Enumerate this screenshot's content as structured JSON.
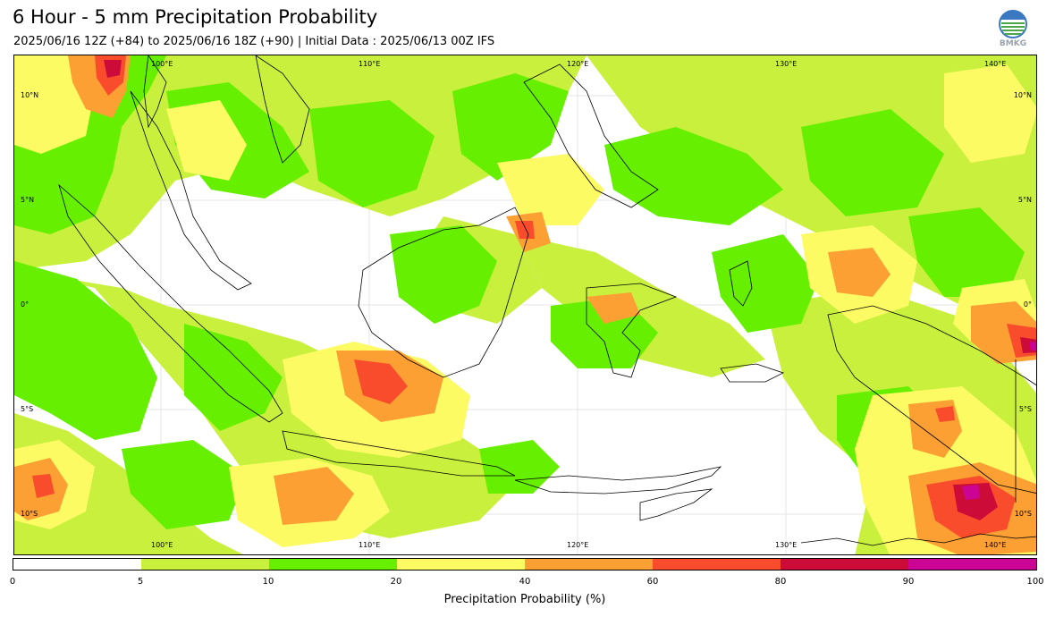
{
  "header": {
    "title": "6 Hour - 5 mm Precipitation Probability",
    "subtitle": "2025/06/16 12Z (+84) to 2025/06/16 18Z (+90) | Initial Data : 2025/06/13 00Z IFS"
  },
  "logo": {
    "text": "BMKG"
  },
  "map": {
    "lon_top_labels": [
      "100°E",
      "110°E",
      "120°E",
      "130°E",
      "140°E"
    ],
    "lon_bottom_labels": [
      "100°E",
      "110°E",
      "120°E",
      "130°E",
      "140°E"
    ],
    "lat_left_labels": [
      "10°N",
      "5°N",
      "0°",
      "5°S",
      "10°S"
    ],
    "lat_right_labels": [
      "10°N",
      "5°N",
      "0°",
      "5°S",
      "10°S"
    ]
  },
  "colorbar": {
    "title": "Precipitation Probability (%)",
    "ticks": [
      "0",
      "5",
      "10",
      "20",
      "40",
      "60",
      "80",
      "90",
      "100"
    ],
    "colors": [
      "#ffffff",
      "#c8f03c",
      "#66f000",
      "#fdfb64",
      "#fca034",
      "#f94c2c",
      "#cd0b38",
      "#cc0494"
    ]
  }
}
